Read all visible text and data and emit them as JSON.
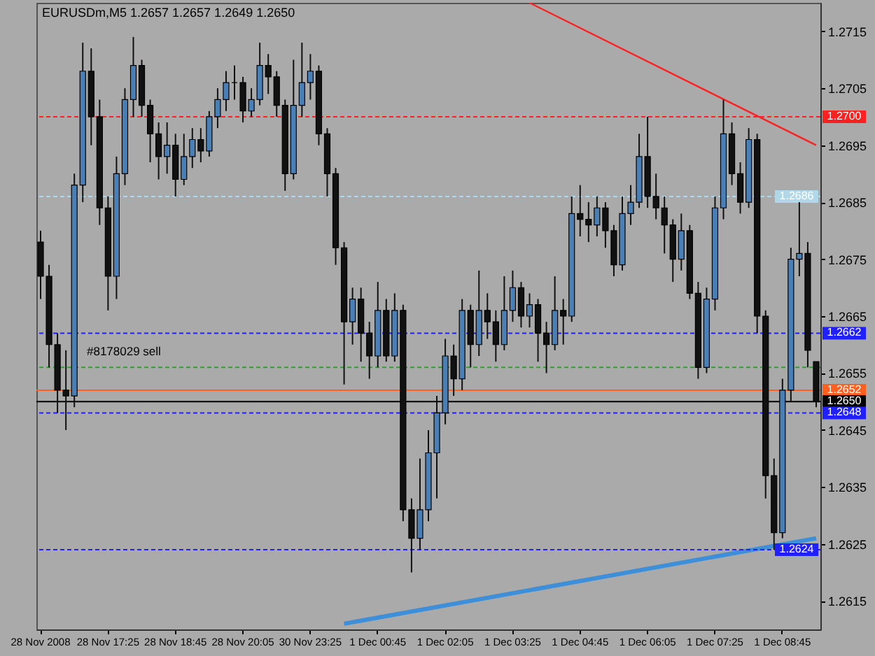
{
  "chart_data": {
    "type": "candlestick",
    "title": "EURUSDm,M5  1.2657 1.2657 1.2649 1.2650",
    "categories": [
      "28 Nov 2008",
      null,
      null,
      null,
      null,
      null,
      null,
      null,
      "28 Nov 17:25",
      null,
      null,
      null,
      null,
      null,
      null,
      null,
      "28 Nov 18:45",
      null,
      null,
      null,
      null,
      null,
      null,
      null,
      "28 Nov 20:05",
      null,
      null,
      null,
      null,
      null,
      null,
      null,
      "30 Nov 23:25",
      null,
      null,
      null,
      null,
      null,
      null,
      null,
      "1 Dec 00:45",
      null,
      null,
      null,
      null,
      null,
      null,
      null,
      "1 Dec 02:05",
      null,
      null,
      null,
      null,
      null,
      null,
      null,
      "1 Dec 03:25",
      null,
      null,
      null,
      null,
      null,
      null,
      null,
      "1 Dec 04:45",
      null,
      null,
      null,
      null,
      null,
      null,
      null,
      "1 Dec 06:05",
      null,
      null,
      null,
      null,
      null,
      null,
      null,
      "1 Dec 07:25",
      null,
      null,
      null,
      null,
      null,
      null,
      null,
      "1 Dec 08:45",
      null,
      null,
      null,
      null
    ],
    "ohlc": [
      [
        1.2678,
        1.268,
        1.2668,
        1.2672
      ],
      [
        1.2672,
        1.2674,
        1.2656,
        1.266
      ],
      [
        1.266,
        1.2662,
        1.2648,
        1.2652
      ],
      [
        1.2652,
        1.2659,
        1.2645,
        1.2651
      ],
      [
        1.2651,
        1.269,
        1.2649,
        1.2688
      ],
      [
        1.2688,
        1.2713,
        1.2685,
        1.2708
      ],
      [
        1.2708,
        1.2712,
        1.2695,
        1.27
      ],
      [
        1.27,
        1.2703,
        1.2681,
        1.2684
      ],
      [
        1.2684,
        1.2686,
        1.2666,
        1.2672
      ],
      [
        1.2672,
        1.2693,
        1.2668,
        1.269
      ],
      [
        1.269,
        1.2705,
        1.2688,
        1.2703
      ],
      [
        1.2703,
        1.2714,
        1.27,
        1.2709
      ],
      [
        1.2709,
        1.271,
        1.27,
        1.2702
      ],
      [
        1.2702,
        1.2703,
        1.2692,
        1.2697
      ],
      [
        1.2697,
        1.2699,
        1.2689,
        1.2693
      ],
      [
        1.2693,
        1.2699,
        1.269,
        1.2695
      ],
      [
        1.2695,
        1.2697,
        1.2686,
        1.2689
      ],
      [
        1.2689,
        1.2697,
        1.2688,
        1.2693
      ],
      [
        1.2693,
        1.2698,
        1.2691,
        1.2696
      ],
      [
        1.2696,
        1.2698,
        1.2692,
        1.2694
      ],
      [
        1.2694,
        1.2701,
        1.2693,
        1.27
      ],
      [
        1.27,
        1.2705,
        1.2698,
        1.2703
      ],
      [
        1.2703,
        1.2708,
        1.2701,
        1.2706
      ],
      [
        1.2706,
        1.2709,
        1.2703,
        1.2706
      ],
      [
        1.2706,
        1.2707,
        1.2699,
        1.2701
      ],
      [
        1.2701,
        1.2705,
        1.27,
        1.2703
      ],
      [
        1.2703,
        1.2713,
        1.2702,
        1.2709
      ],
      [
        1.2709,
        1.2711,
        1.2704,
        1.2707
      ],
      [
        1.2707,
        1.2708,
        1.27,
        1.2702
      ],
      [
        1.2702,
        1.2703,
        1.2687,
        1.269
      ],
      [
        1.269,
        1.271,
        1.2689,
        1.2702
      ],
      [
        1.2702,
        1.2713,
        1.27,
        1.2706
      ],
      [
        1.2706,
        1.2711,
        1.2703,
        1.2708
      ],
      [
        1.2708,
        1.2709,
        1.2695,
        1.2697
      ],
      [
        1.2697,
        1.2698,
        1.2686,
        1.269
      ],
      [
        1.269,
        1.2691,
        1.2674,
        1.2677
      ],
      [
        1.2677,
        1.2678,
        1.2653,
        1.2664
      ],
      [
        1.2664,
        1.267,
        1.266,
        1.2668
      ],
      [
        1.2668,
        1.267,
        1.2657,
        1.2662
      ],
      [
        1.2662,
        1.2664,
        1.2654,
        1.2658
      ],
      [
        1.2658,
        1.2671,
        1.2656,
        1.2666
      ],
      [
        1.2666,
        1.2668,
        1.2657,
        1.2658
      ],
      [
        1.2658,
        1.2669,
        1.2657,
        1.2666
      ],
      [
        1.2666,
        1.2667,
        1.2629,
        1.2631
      ],
      [
        1.2631,
        1.2633,
        1.262,
        1.2626
      ],
      [
        1.2626,
        1.264,
        1.2624,
        1.2631
      ],
      [
        1.2631,
        1.2645,
        1.2629,
        1.2641
      ],
      [
        1.2641,
        1.2651,
        1.2633,
        1.2648
      ],
      [
        1.2648,
        1.2661,
        1.2646,
        1.2658
      ],
      [
        1.2658,
        1.266,
        1.2651,
        1.2654
      ],
      [
        1.2654,
        1.2668,
        1.2652,
        1.2666
      ],
      [
        1.2666,
        1.2667,
        1.2656,
        1.266
      ],
      [
        1.266,
        1.2673,
        1.2658,
        1.2666
      ],
      [
        1.2666,
        1.2669,
        1.2661,
        1.2664
      ],
      [
        1.2664,
        1.2666,
        1.2657,
        1.266
      ],
      [
        1.266,
        1.2672,
        1.2659,
        1.2666
      ],
      [
        1.2666,
        1.2673,
        1.2664,
        1.267
      ],
      [
        1.267,
        1.2671,
        1.2663,
        1.2665
      ],
      [
        1.2665,
        1.2669,
        1.2663,
        1.2667
      ],
      [
        1.2667,
        1.2668,
        1.2657,
        1.2662
      ],
      [
        1.2662,
        1.2664,
        1.2655,
        1.266
      ],
      [
        1.266,
        1.2672,
        1.2659,
        1.2666
      ],
      [
        1.2666,
        1.2668,
        1.266,
        1.2665
      ],
      [
        1.2665,
        1.2686,
        1.2664,
        1.2683
      ],
      [
        1.2683,
        1.2688,
        1.2679,
        1.2682
      ],
      [
        1.2682,
        1.2685,
        1.2678,
        1.2681
      ],
      [
        1.2681,
        1.2686,
        1.2679,
        1.2684
      ],
      [
        1.2684,
        1.2685,
        1.2677,
        1.268
      ],
      [
        1.268,
        1.2681,
        1.2672,
        1.2674
      ],
      [
        1.2674,
        1.2686,
        1.2673,
        1.2683
      ],
      [
        1.2683,
        1.2688,
        1.2681,
        1.2685
      ],
      [
        1.2685,
        1.2697,
        1.2684,
        1.2693
      ],
      [
        1.2693,
        1.27,
        1.2684,
        1.2686
      ],
      [
        1.2686,
        1.269,
        1.2682,
        1.2684
      ],
      [
        1.2684,
        1.2686,
        1.2676,
        1.2681
      ],
      [
        1.2681,
        1.2682,
        1.2671,
        1.2675
      ],
      [
        1.2675,
        1.2683,
        1.2673,
        1.268
      ],
      [
        1.268,
        1.2681,
        1.2668,
        1.2669
      ],
      [
        1.2669,
        1.2671,
        1.2654,
        1.2656
      ],
      [
        1.2656,
        1.267,
        1.2655,
        1.2668
      ],
      [
        1.2668,
        1.2686,
        1.2666,
        1.2684
      ],
      [
        1.2684,
        1.2703,
        1.2682,
        1.2697
      ],
      [
        1.2697,
        1.2699,
        1.2688,
        1.269
      ],
      [
        1.269,
        1.2692,
        1.2683,
        1.2685
      ],
      [
        1.2685,
        1.2698,
        1.2684,
        1.2696
      ],
      [
        1.2696,
        1.2697,
        1.2662,
        1.2665
      ],
      [
        1.2665,
        1.2666,
        1.2633,
        1.2637
      ],
      [
        1.2637,
        1.264,
        1.2624,
        1.2627
      ],
      [
        1.2627,
        1.2654,
        1.2626,
        1.2652
      ],
      [
        1.2652,
        1.2677,
        1.265,
        1.2675
      ],
      [
        1.2675,
        1.2685,
        1.2672,
        1.2676
      ],
      [
        1.2676,
        1.2678,
        1.2656,
        1.2659
      ],
      [
        1.2657,
        1.2657,
        1.2649,
        1.265
      ]
    ],
    "series": [
      {
        "type": "line",
        "color": "#ff2020",
        "values": [
          null,
          null,
          null,
          null,
          null,
          null,
          null,
          null,
          null,
          null,
          null,
          null,
          null,
          null,
          null,
          null,
          null,
          null,
          null,
          null,
          null,
          null,
          null,
          null,
          null,
          null,
          null,
          null,
          null,
          null,
          null,
          null,
          null,
          null,
          null,
          null,
          null,
          null,
          null,
          null,
          null,
          null,
          null,
          null,
          null,
          null,
          null,
          null,
          null,
          null,
          null,
          null,
          null,
          null,
          null,
          null,
          null,
          null,
          1.272,
          null,
          null,
          null,
          null,
          null,
          null,
          null,
          null,
          null,
          null,
          null,
          null,
          null,
          null,
          null,
          null,
          null,
          null,
          null,
          null,
          null,
          null,
          null,
          null,
          null,
          null,
          null,
          null,
          null,
          null,
          null,
          null,
          null,
          1.2695
        ]
      },
      {
        "type": "line",
        "color": "#3c8fd8",
        "values": [
          null,
          null,
          null,
          null,
          null,
          null,
          null,
          null,
          null,
          null,
          null,
          null,
          null,
          null,
          null,
          null,
          null,
          null,
          null,
          null,
          null,
          null,
          null,
          null,
          null,
          null,
          null,
          null,
          null,
          null,
          null,
          null,
          null,
          null,
          null,
          null,
          1.2611,
          null,
          null,
          null,
          null,
          null,
          null,
          null,
          null,
          null,
          null,
          null,
          null,
          null,
          null,
          null,
          null,
          null,
          null,
          null,
          null,
          null,
          null,
          null,
          null,
          null,
          null,
          null,
          null,
          null,
          null,
          null,
          null,
          null,
          null,
          null,
          null,
          null,
          null,
          null,
          null,
          null,
          null,
          null,
          null,
          null,
          null,
          null,
          null,
          null,
          null,
          null,
          null,
          null,
          null,
          null,
          1.2626
        ]
      }
    ],
    "ylim": [
      1.261,
      1.272
    ],
    "yticks": [
      1.2615,
      1.2625,
      1.2635,
      1.2645,
      1.2655,
      1.2665,
      1.2675,
      1.2685,
      1.2695,
      1.2705,
      1.2715
    ],
    "ref_lines": [
      {
        "axis": "y",
        "value": 1.27,
        "label": "1.2700",
        "color": "#ff2020",
        "line_style": "dashed"
      },
      {
        "axis": "y",
        "value": 1.2686,
        "label": "1.2686",
        "color": "#b0d8e8",
        "line_style": "dashed"
      },
      {
        "axis": "y",
        "value": 1.2662,
        "label": "1.2662",
        "color": "#2020ff",
        "line_style": "dashed"
      },
      {
        "axis": "y",
        "value": 1.2656,
        "color": "#30a030",
        "line_style": "dashed"
      },
      {
        "axis": "y",
        "value": 1.2652,
        "label": "1.2652",
        "color": "#ff6020",
        "line_style": "solid"
      },
      {
        "axis": "y",
        "value": 1.265,
        "label": "1.2650",
        "color": "#000000",
        "line_style": "solid"
      },
      {
        "axis": "y",
        "value": 1.2648,
        "label": "1.2648",
        "color": "#2020ff",
        "line_style": "dashed"
      },
      {
        "axis": "y",
        "value": 1.2624,
        "label": "1.2624",
        "color": "#2020ff",
        "line_style": "dashed"
      }
    ],
    "annotations": [
      "#8178029 sell"
    ]
  }
}
